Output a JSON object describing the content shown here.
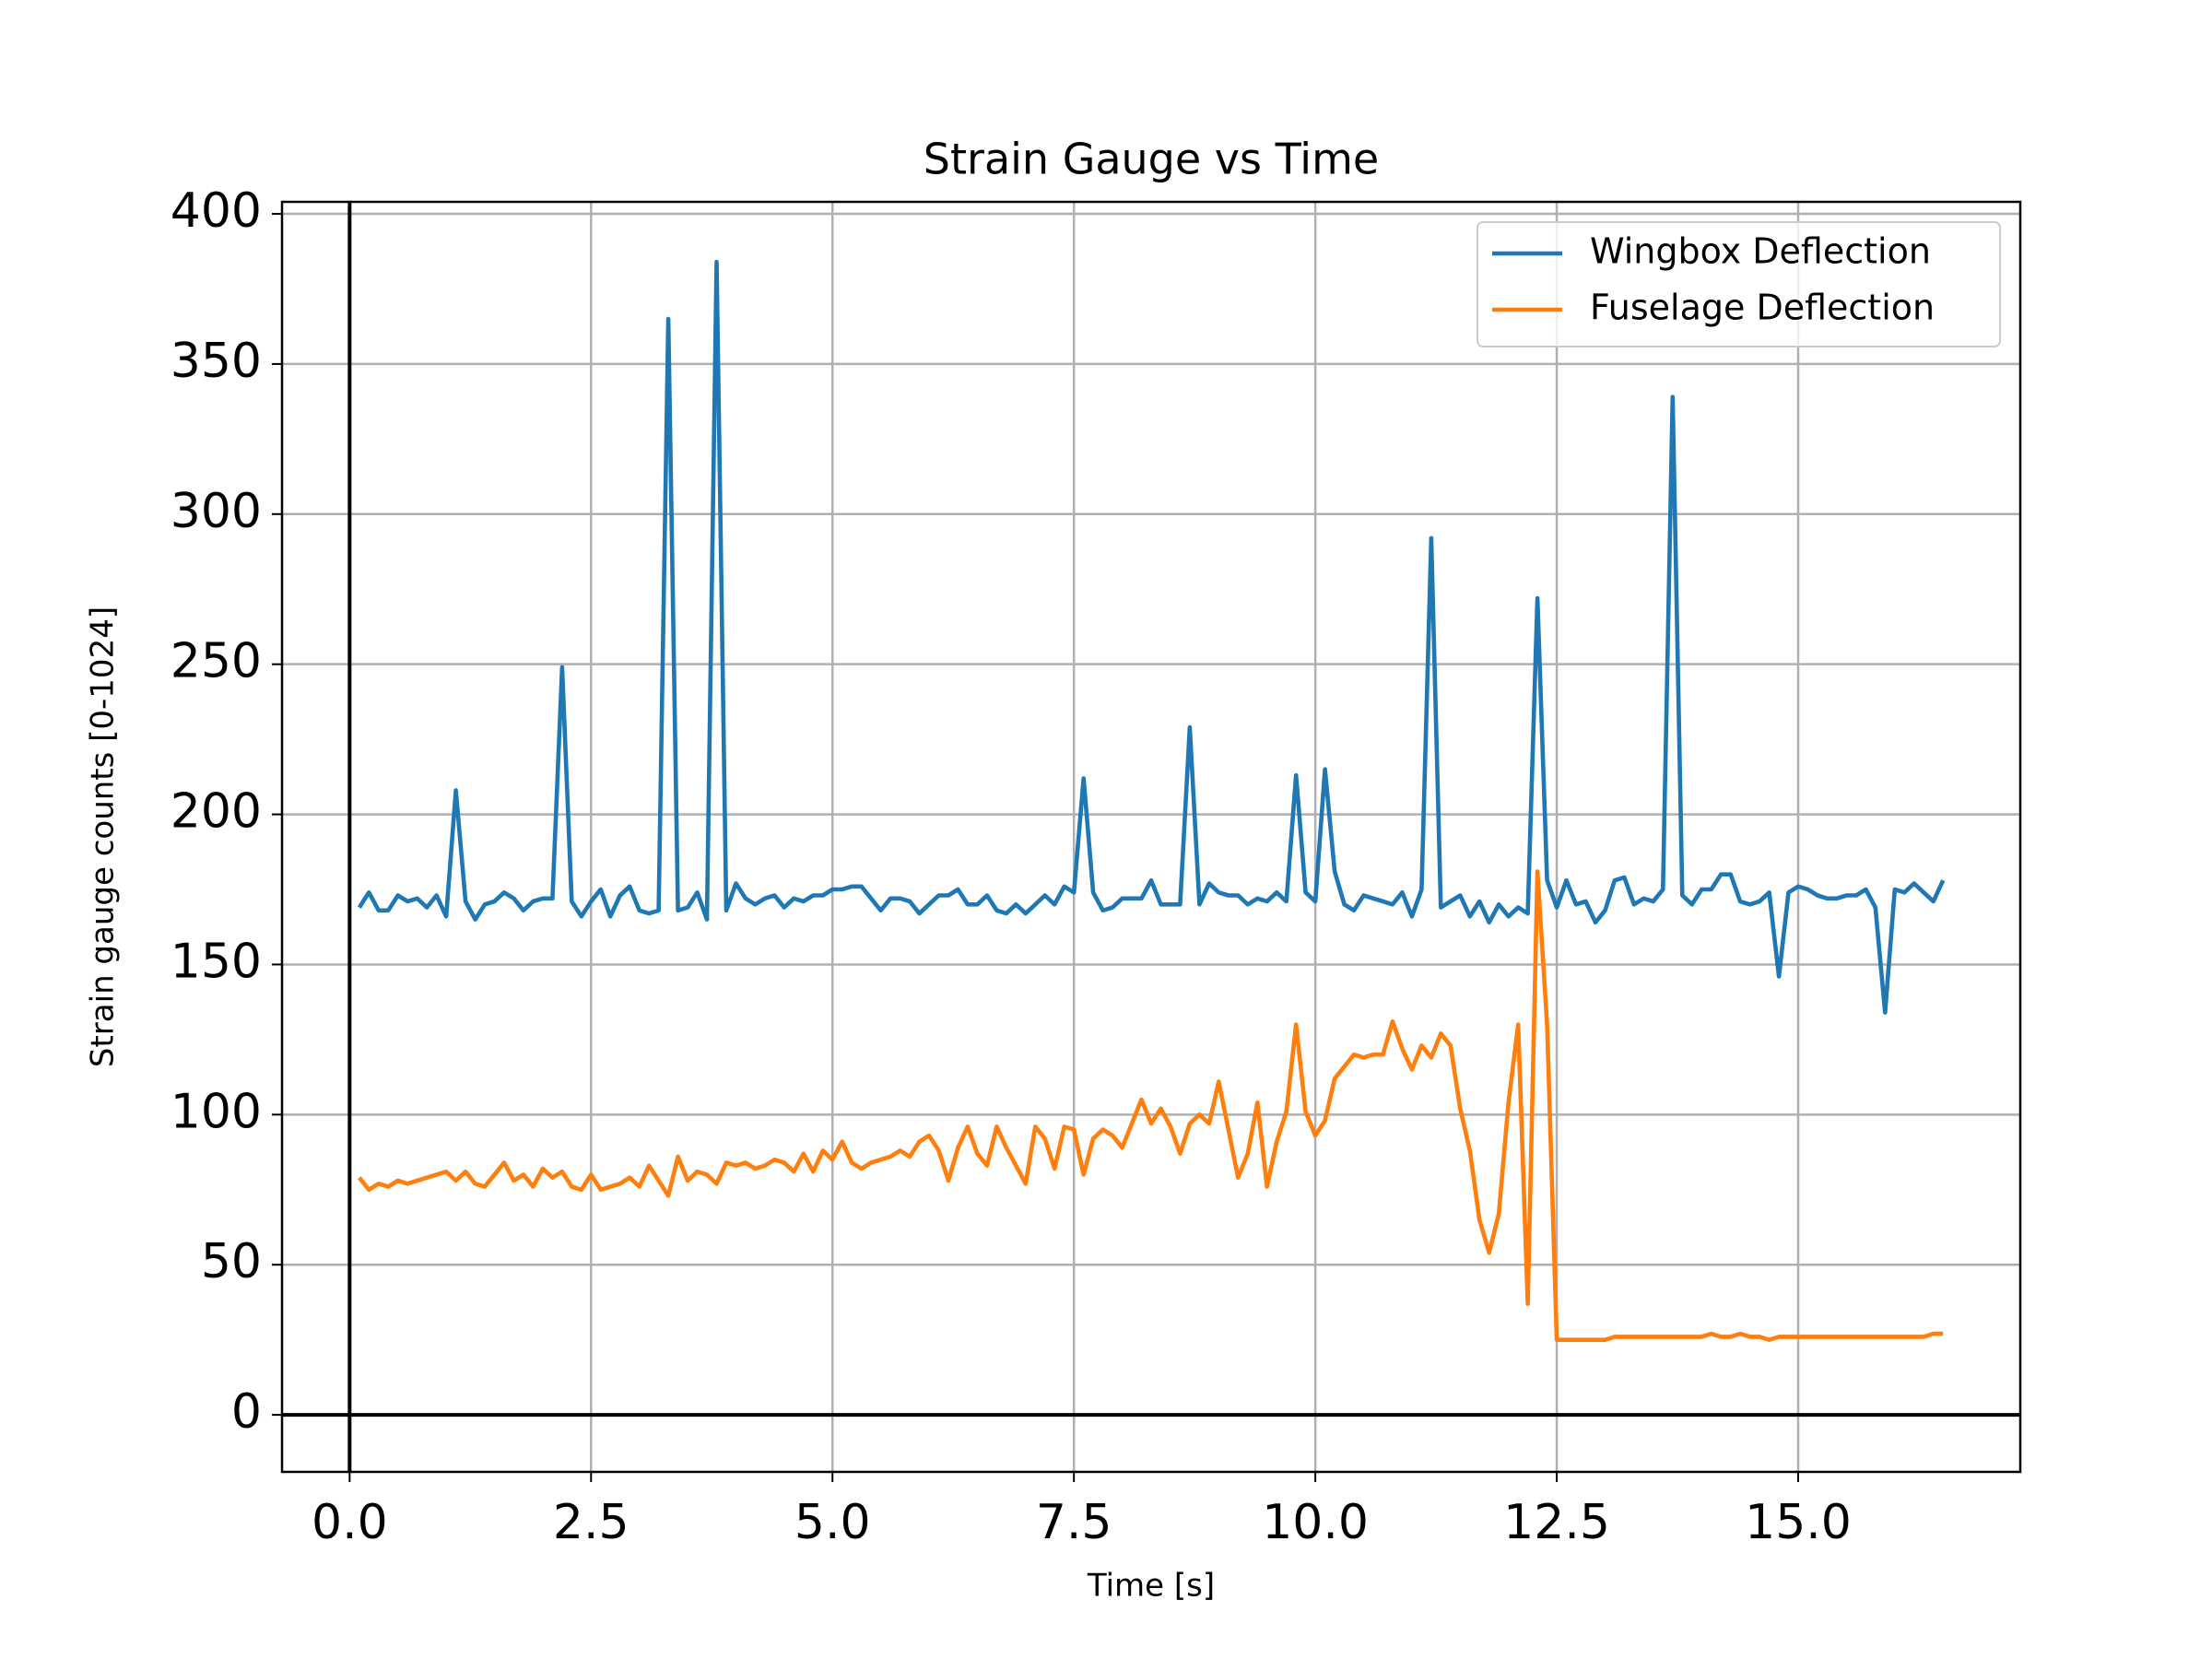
{
  "chart_data": {
    "type": "line",
    "title": "Strain Gauge vs Time",
    "x_label": "Time [s]",
    "y_label": "Strain gauge counts [0-1024]",
    "x": [
      0.1,
      0.2,
      0.3,
      0.4,
      0.5,
      0.6,
      0.7,
      0.8,
      0.9,
      1.0,
      1.1,
      1.2,
      1.3,
      1.4,
      1.5,
      1.6,
      1.7,
      1.8,
      1.9,
      2.0,
      2.1,
      2.2,
      2.3,
      2.4,
      2.5,
      2.6,
      2.7,
      2.8,
      2.9,
      3.0,
      3.1,
      3.2,
      3.3,
      3.4,
      3.5,
      3.6,
      3.7,
      3.8,
      3.9,
      4.0,
      4.1,
      4.2,
      4.3,
      4.4,
      4.5,
      4.6,
      4.7,
      4.8,
      4.9,
      5.0,
      5.1,
      5.2,
      5.3,
      5.4,
      5.5,
      5.6,
      5.7,
      5.8,
      5.9,
      6.0,
      6.1,
      6.2,
      6.3,
      6.4,
      6.5,
      6.6,
      6.7,
      6.8,
      6.9,
      7.0,
      7.1,
      7.2,
      7.3,
      7.4,
      7.5,
      7.6,
      7.7,
      7.8,
      7.9,
      8.0,
      8.1,
      8.2,
      8.3,
      8.4,
      8.5,
      8.6,
      8.7,
      8.8,
      8.9,
      9.0,
      9.1,
      9.2,
      9.3,
      9.4,
      9.5,
      9.6,
      9.7,
      9.8,
      9.9,
      10.0,
      10.1,
      10.2,
      10.3,
      10.4,
      10.5,
      10.6,
      10.7,
      10.8,
      10.9,
      11.0,
      11.1,
      11.2,
      11.3,
      11.4,
      11.5,
      11.6,
      11.7,
      11.8,
      11.9,
      12.0,
      12.1,
      12.2,
      12.3,
      12.4,
      12.5,
      12.6,
      12.7,
      12.8,
      12.9,
      13.0,
      13.1,
      13.2,
      13.3,
      13.4,
      13.5,
      13.6,
      13.7,
      13.8,
      13.9,
      14.0,
      14.1,
      14.2,
      14.3,
      14.4,
      14.5,
      14.6,
      14.7,
      14.8,
      14.9,
      15.0,
      15.1,
      15.2,
      15.3,
      15.4,
      15.5,
      15.6,
      15.7,
      15.8,
      15.9,
      16.0,
      16.1,
      16.2,
      16.3,
      16.4,
      16.5
    ],
    "series": [
      {
        "name": "Wingbox Deflection",
        "color": "#1f77b4",
        "values": [
          169,
          174,
          168,
          168,
          173,
          171,
          172,
          169,
          173,
          166,
          208,
          171,
          165,
          170,
          171,
          174,
          172,
          168,
          171,
          172,
          172,
          249,
          171,
          166,
          171,
          175,
          166,
          173,
          176,
          168,
          167,
          168,
          365,
          168,
          169,
          174,
          165,
          384,
          168,
          177,
          172,
          170,
          172,
          173,
          169,
          172,
          171,
          173,
          173,
          175,
          175,
          176,
          176,
          172,
          168,
          172,
          172,
          171,
          167,
          170,
          173,
          173,
          175,
          170,
          170,
          173,
          168,
          167,
          170,
          167,
          170,
          173,
          170,
          176,
          174,
          212,
          174,
          168,
          169,
          172,
          172,
          172,
          178,
          170,
          170,
          170,
          229,
          170,
          177,
          174,
          173,
          173,
          170,
          172,
          171,
          174,
          171,
          213,
          174,
          171,
          215,
          181,
          170,
          168,
          173,
          172,
          171,
          170,
          174,
          166,
          175,
          292,
          169,
          171,
          173,
          166,
          171,
          164,
          170,
          166,
          169,
          167,
          272,
          178,
          169,
          178,
          170,
          171,
          164,
          168,
          178,
          179,
          170,
          172,
          171,
          175,
          339,
          173,
          170,
          175,
          175,
          180,
          180,
          171,
          170,
          171,
          174,
          146,
          174,
          176,
          175,
          173,
          172,
          172,
          173,
          173,
          175,
          169,
          134,
          175,
          174,
          177,
          174,
          171,
          178
        ]
      },
      {
        "name": "Fuselage Deflection",
        "color": "#ff7f0e",
        "values": [
          79,
          75,
          77,
          76,
          78,
          77,
          78,
          79,
          80,
          81,
          78,
          81,
          77,
          76,
          80,
          84,
          78,
          80,
          76,
          82,
          79,
          81,
          76,
          75,
          80,
          75,
          76,
          77,
          79,
          76,
          83,
          78,
          73,
          86,
          78,
          81,
          80,
          77,
          84,
          83,
          84,
          82,
          83,
          85,
          84,
          81,
          87,
          81,
          88,
          85,
          91,
          84,
          82,
          84,
          85,
          86,
          88,
          86,
          91,
          93,
          88,
          78,
          89,
          96,
          87,
          83,
          96,
          89,
          83,
          77,
          96,
          92,
          82,
          96,
          95,
          80,
          92,
          95,
          93,
          89,
          97,
          105,
          97,
          102,
          96,
          87,
          97,
          100,
          97,
          111,
          95,
          79,
          87,
          104,
          76,
          91,
          101,
          130,
          101,
          93,
          98,
          112,
          116,
          120,
          119,
          120,
          120,
          131,
          122,
          115,
          123,
          119,
          127,
          123,
          102,
          88,
          65,
          54,
          67,
          104,
          130,
          37,
          181,
          130,
          25,
          25,
          25,
          25,
          25,
          25,
          26,
          26,
          26,
          26,
          26,
          26,
          26,
          26,
          26,
          26,
          27,
          26,
          26,
          27,
          26,
          26,
          25,
          26,
          26,
          26,
          26,
          26,
          26,
          26,
          26,
          26,
          26,
          26,
          26,
          26,
          26,
          26,
          26,
          27,
          27
        ]
      }
    ],
    "xlim": [
      -0.7,
      17.3
    ],
    "ylim": [
      -19,
      404
    ],
    "xticks": [
      {
        "value": 0.0,
        "label": "0.0"
      },
      2.5,
      {
        "value": 5.0,
        "label": "5.0"
      },
      7.5,
      {
        "value": 10.0,
        "label": "10.0"
      },
      12.5,
      {
        "value": 15.0,
        "label": "15.0"
      }
    ],
    "yticks": [
      0,
      50,
      100,
      150,
      200,
      250,
      300,
      350,
      400
    ],
    "grid": true,
    "zero_lines": true,
    "legend": "upper right"
  }
}
